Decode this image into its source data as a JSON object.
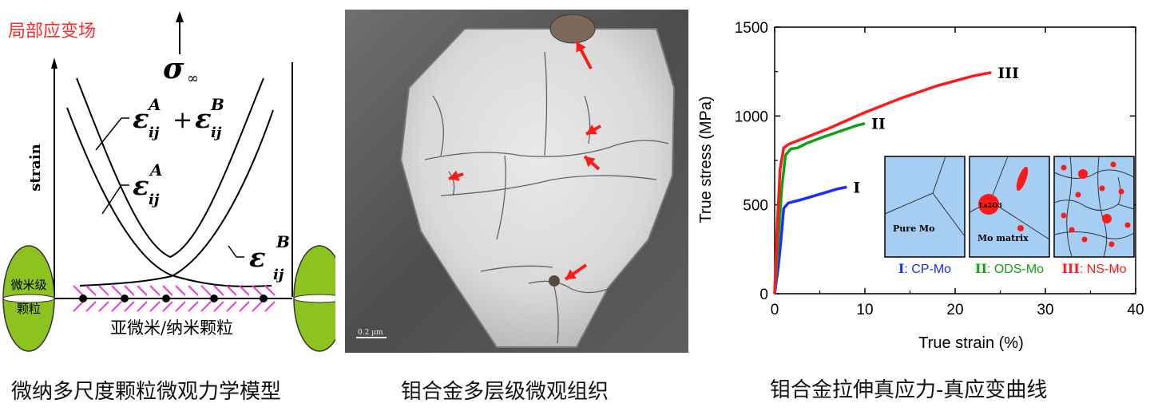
{
  "left_panel": {
    "title": "局部应变场",
    "title_color": "#ff2a2a",
    "y_axis_label": "strain",
    "sigma_label": "σ",
    "sigma_sub": "∞",
    "curve_labels": {
      "sum": "ε<sub>ij</sub><sup>A</sup> + ε<sub>ij</sub><sup>B</sup>",
      "a": "εijA",
      "b": "εijB"
    },
    "particle_label_line1": "微米级",
    "particle_label_line2": "颗粒",
    "bottom_label": "亚微米/纳米颗粒",
    "caption": "微纳多尺度颗粒微观力学模型",
    "particle_color": "#8dc31e",
    "hatch_color": "#e040e0"
  },
  "middle_panel": {
    "scale_bar": "0.2 μm",
    "caption": "钼合金多层级微观组织",
    "arrow_color": "#ff1a1a"
  },
  "chart_data": {
    "type": "line",
    "xlabel": "True strain (%)",
    "ylabel": "True stress (MPa)",
    "xlim": [
      0,
      40
    ],
    "ylim": [
      0,
      1500
    ],
    "xticks": [
      0,
      10,
      20,
      30,
      40
    ],
    "yticks": [
      0,
      500,
      1000,
      1500
    ],
    "series": [
      {
        "name": "I",
        "color": "#1a2cff",
        "points": [
          [
            0,
            0
          ],
          [
            0.4,
            150
          ],
          [
            0.7,
            300
          ],
          [
            1.0,
            480
          ],
          [
            1.5,
            510
          ],
          [
            3,
            530
          ],
          [
            5,
            560
          ],
          [
            7,
            590
          ],
          [
            8,
            600
          ]
        ]
      },
      {
        "name": "II",
        "color": "#12a012",
        "points": [
          [
            0,
            0
          ],
          [
            0.4,
            300
          ],
          [
            0.8,
            600
          ],
          [
            1.2,
            780
          ],
          [
            1.8,
            815
          ],
          [
            2.5,
            820
          ],
          [
            3.5,
            845
          ],
          [
            5,
            875
          ],
          [
            7,
            910
          ],
          [
            9,
            945
          ],
          [
            10,
            958
          ]
        ]
      },
      {
        "name": "III",
        "color": "#ff1a1a",
        "points": [
          [
            0,
            0
          ],
          [
            0.3,
            400
          ],
          [
            0.6,
            700
          ],
          [
            1.0,
            820
          ],
          [
            1.5,
            840
          ],
          [
            3,
            870
          ],
          [
            6,
            930
          ],
          [
            10,
            1020
          ],
          [
            14,
            1100
          ],
          [
            18,
            1170
          ],
          [
            22,
            1225
          ],
          [
            24,
            1245
          ]
        ]
      }
    ],
    "insets": [
      {
        "label": "Pure Mo",
        "legend_roman": "I",
        "legend_text": ": CP-Mo",
        "legend_color": "#1a2cff"
      },
      {
        "label": "Mo matrix",
        "particle_label": "La2O3",
        "legend_roman": "II",
        "legend_text": ": ODS-Mo",
        "legend_color": "#12a012"
      },
      {
        "label": "",
        "legend_roman": "III",
        "legend_text": ": NS-Mo",
        "legend_color": "#ff1a1a"
      }
    ],
    "inset_fill": "#a6cdf2",
    "caption": "钼合金拉伸真应力-真应变曲线"
  }
}
